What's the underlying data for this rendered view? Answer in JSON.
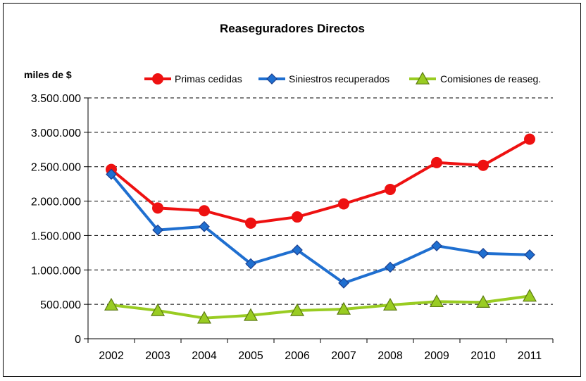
{
  "chart_data": {
    "type": "line",
    "title": "Reaseguradores Directos",
    "ylabel": "miles de $",
    "xlabel": "",
    "categories": [
      "2002",
      "2003",
      "2004",
      "2005",
      "2006",
      "2007",
      "2008",
      "2009",
      "2010",
      "2011"
    ],
    "ylim": [
      0,
      3500000
    ],
    "yticks": [
      0,
      500000,
      1000000,
      1500000,
      2000000,
      2500000,
      3000000,
      3500000
    ],
    "ytick_labels": [
      "0",
      "500.000",
      "1.000.000",
      "1.500.000",
      "2.000.000",
      "2.500.000",
      "3.000.000",
      "3.500.000"
    ],
    "grid": "horizontal dashed",
    "legend_position": "top",
    "series": [
      {
        "name": "Primas cedidas",
        "color": "#ee1111",
        "marker": "circle",
        "values": [
          2460000,
          1900000,
          1860000,
          1680000,
          1770000,
          1960000,
          2170000,
          2560000,
          2520000,
          2900000
        ]
      },
      {
        "name": "Siniestros recuperados",
        "color": "#1f6fd0",
        "marker": "diamond",
        "values": [
          2390000,
          1580000,
          1630000,
          1090000,
          1290000,
          810000,
          1040000,
          1350000,
          1240000,
          1220000
        ]
      },
      {
        "name": "Comisiones de reaseg.",
        "color": "#99cc22",
        "marker": "triangle",
        "values": [
          490000,
          410000,
          300000,
          340000,
          410000,
          430000,
          490000,
          540000,
          530000,
          620000
        ]
      }
    ]
  }
}
